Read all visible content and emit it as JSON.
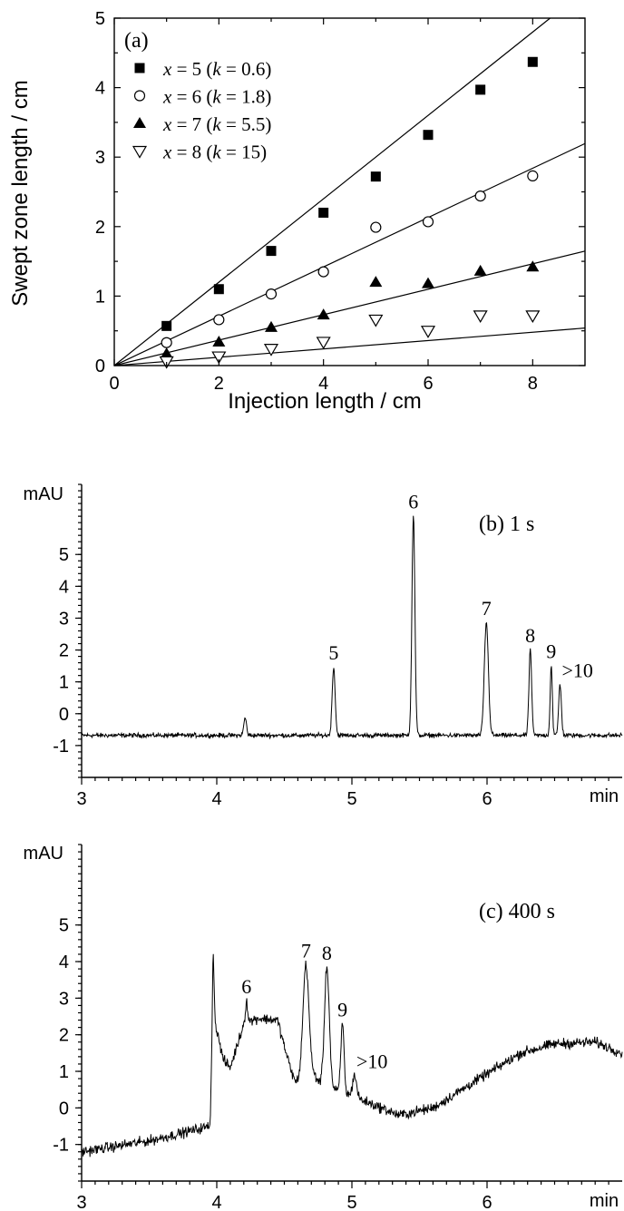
{
  "chart_data": [
    {
      "type": "scatter",
      "panel_label": "(a)",
      "xlabel": "Injection length / cm",
      "ylabel": "Swept zone length / cm",
      "xlim": [
        0,
        9
      ],
      "ylim": [
        0,
        5
      ],
      "x_ticks": [
        0,
        2,
        4,
        6,
        8
      ],
      "y_ticks": [
        0,
        1,
        2,
        3,
        4,
        5
      ],
      "legend_position": "top-left",
      "series": [
        {
          "name": "x = 5 (k = 0.6)",
          "name_parts": [
            "5",
            "0.6"
          ],
          "marker": "filled-square",
          "x": [
            1,
            2,
            3,
            4,
            5,
            6,
            7,
            8
          ],
          "y": [
            0.57,
            1.1,
            1.65,
            2.2,
            2.72,
            3.32,
            3.97,
            4.37
          ],
          "fit_slope": 0.6
        },
        {
          "name": "x = 6 (k = 1.8)",
          "name_parts": [
            "6",
            "1.8"
          ],
          "marker": "open-circle",
          "x": [
            1,
            2,
            3,
            4,
            5,
            6,
            7,
            8
          ],
          "y": [
            0.33,
            0.66,
            1.03,
            1.35,
            1.99,
            2.07,
            2.44,
            2.73
          ],
          "fit_slope": 0.355
        },
        {
          "name": "x = 7 (k = 5.5)",
          "name_parts": [
            "7",
            "5.5"
          ],
          "marker": "filled-triangle",
          "x": [
            1,
            2,
            3,
            4,
            5,
            6,
            7,
            8
          ],
          "y": [
            0.17,
            0.34,
            0.55,
            0.73,
            1.2,
            1.18,
            1.36,
            1.42
          ],
          "fit_slope": 0.183
        },
        {
          "name": "x = 8 (k = 15)",
          "name_parts": [
            "8",
            "15"
          ],
          "marker": "open-triangle-down",
          "x": [
            1,
            2,
            3,
            4,
            5,
            6,
            7,
            8
          ],
          "y": [
            0.06,
            0.13,
            0.24,
            0.34,
            0.66,
            0.5,
            0.72,
            0.72
          ],
          "fit_slope": 0.06
        }
      ]
    },
    {
      "type": "line",
      "panel_label": "(b) 1 s",
      "ylabel": "mAU",
      "xunit": "min",
      "xlim": [
        3,
        7
      ],
      "ylim": [
        -2,
        7.2
      ],
      "x_ticks": [
        3,
        4,
        5,
        6
      ],
      "y_ticks": [
        -1,
        0,
        1,
        2,
        3,
        4,
        5
      ],
      "baseline": -0.68,
      "noise": 0.07,
      "peaks": [
        {
          "label": "",
          "t": 4.21,
          "height": 0.55,
          "width": 0.01
        },
        {
          "label": "5",
          "t": 4.865,
          "height": 2.15,
          "width": 0.011
        },
        {
          "label": "6",
          "t": 5.455,
          "height": 6.9,
          "width": 0.011
        },
        {
          "label": "7",
          "t": 5.995,
          "height": 3.55,
          "width": 0.015
        },
        {
          "label": "8",
          "t": 6.32,
          "height": 2.7,
          "width": 0.01
        },
        {
          "label": "9",
          "t": 6.475,
          "height": 2.2,
          "width": 0.008
        },
        {
          "label": ">10",
          "t": 6.54,
          "height": 1.6,
          "width": 0.01
        }
      ]
    },
    {
      "type": "line",
      "panel_label": "(c) 400 s",
      "ylabel": "mAU",
      "xunit": "min",
      "xlim": [
        3,
        7
      ],
      "ylim": [
        -2,
        7.2
      ],
      "x_ticks": [
        3,
        4,
        5,
        6
      ],
      "y_ticks": [
        -1,
        0,
        1,
        2,
        3,
        4,
        5
      ],
      "noise": 0.14,
      "baseline_points": [
        [
          3.0,
          -1.2
        ],
        [
          3.5,
          -0.9
        ],
        [
          3.95,
          -0.5
        ],
        [
          3.97,
          2.6
        ],
        [
          4.05,
          1.3
        ],
        [
          4.1,
          1.1
        ],
        [
          4.2,
          2.3
        ],
        [
          4.3,
          2.45
        ],
        [
          4.45,
          2.4
        ],
        [
          4.52,
          1.4
        ],
        [
          4.58,
          0.7
        ],
        [
          4.72,
          0.9
        ],
        [
          4.78,
          0.6
        ],
        [
          5.05,
          0.25
        ],
        [
          5.35,
          -0.2
        ],
        [
          5.6,
          0.0
        ],
        [
          5.9,
          0.7
        ],
        [
          6.25,
          1.5
        ],
        [
          6.5,
          1.75
        ],
        [
          6.8,
          1.8
        ],
        [
          7.0,
          1.5
        ]
      ],
      "peaks": [
        {
          "label": "",
          "t": 3.975,
          "height": 1.6,
          "width": 0.006
        },
        {
          "label": "6",
          "t": 4.22,
          "height": 0.6,
          "width": 0.008
        },
        {
          "label": "7",
          "t": 4.66,
          "height": 3.1,
          "width": 0.022
        },
        {
          "label": "8",
          "t": 4.815,
          "height": 3.3,
          "width": 0.018
        },
        {
          "label": "9",
          "t": 4.93,
          "height": 1.9,
          "width": 0.012
        },
        {
          "label": ">10",
          "t": 5.02,
          "height": 0.6,
          "width": 0.015
        }
      ]
    }
  ]
}
